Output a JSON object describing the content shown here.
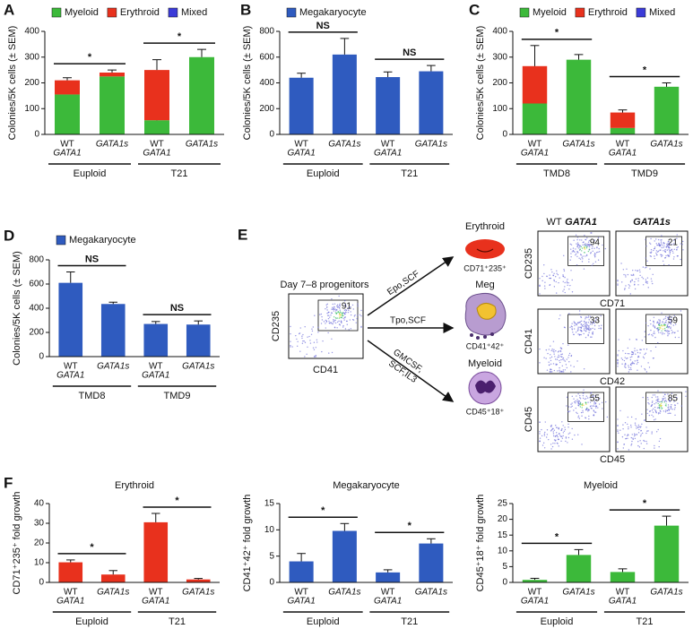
{
  "chart_data": [
    {
      "panel": "A",
      "type": "stacked_bar",
      "ylabel": "Colonies/5K cells (± SEM)",
      "categories": [
        [
          "WT",
          "GATA1"
        ],
        [
          "GATA1s"
        ],
        [
          "WT",
          "GATA1"
        ],
        [
          "GATA1s"
        ]
      ],
      "groups": [
        "Euploid",
        "T21"
      ],
      "significance": [
        "*",
        "*"
      ],
      "series": [
        {
          "name": "Myeloid",
          "color": "#3cb93a",
          "values": [
            155,
            225,
            55,
            300
          ],
          "errors": [
            null,
            null,
            10,
            30
          ]
        },
        {
          "name": "Erythroid",
          "color": "#e8311d",
          "values": [
            55,
            15,
            195,
            0
          ],
          "errors": [
            10,
            10,
            40,
            null
          ]
        },
        {
          "name": "Mixed",
          "color": "#3b3bd8",
          "values": [
            0,
            0,
            0,
            0
          ],
          "errors": [
            null,
            null,
            null,
            null
          ]
        }
      ],
      "ylim": [
        0,
        400
      ],
      "yticks": [
        0,
        100,
        200,
        300,
        400
      ]
    },
    {
      "panel": "B",
      "type": "bar",
      "ylabel": "Colonies/5K cells (± SEM)",
      "categories": [
        [
          "WT",
          "GATA1"
        ],
        [
          "GATA1s"
        ],
        [
          "WT",
          "GATA1"
        ],
        [
          "GATA1s"
        ]
      ],
      "groups": [
        "Euploid",
        "T21"
      ],
      "significance": [
        "NS",
        "NS"
      ],
      "series": [
        {
          "name": "Megakaryocyte",
          "color": "#2f5bbf",
          "values": [
            440,
            620,
            445,
            490
          ],
          "errors": [
            35,
            125,
            40,
            45
          ]
        }
      ],
      "ylim": [
        0,
        800
      ],
      "yticks": [
        0,
        200,
        400,
        600,
        800
      ]
    },
    {
      "panel": "C",
      "type": "stacked_bar",
      "ylabel": "Colonies/5K cells (± SEM)",
      "categories": [
        [
          "WT",
          "GATA1"
        ],
        [
          "GATA1s"
        ],
        [
          "WT",
          "GATA1"
        ],
        [
          "GATA1s"
        ]
      ],
      "groups": [
        "TMD8",
        "TMD9"
      ],
      "significance": [
        "*",
        "*"
      ],
      "series": [
        {
          "name": "Myeloid",
          "color": "#3cb93a",
          "values": [
            120,
            290,
            25,
            185
          ],
          "errors": [
            25,
            20,
            null,
            15
          ]
        },
        {
          "name": "Erythroid",
          "color": "#e8311d",
          "values": [
            145,
            0,
            60,
            0
          ],
          "errors": [
            80,
            null,
            10,
            null
          ]
        },
        {
          "name": "Mixed",
          "color": "#3b3bd8",
          "values": [
            0,
            0,
            0,
            0
          ],
          "errors": [
            null,
            null,
            null,
            null
          ]
        }
      ],
      "ylim": [
        0,
        400
      ],
      "yticks": [
        0,
        100,
        200,
        300,
        400
      ]
    },
    {
      "panel": "D",
      "type": "bar",
      "ylabel": "Colonies/5K cells (± SEM)",
      "categories": [
        [
          "WT",
          "GATA1"
        ],
        [
          "GATA1s"
        ],
        [
          "WT",
          "GATA1"
        ],
        [
          "GATA1s"
        ]
      ],
      "groups": [
        "TMD8",
        "TMD9"
      ],
      "significance": [
        "NS",
        "NS"
      ],
      "series": [
        {
          "name": "Megakaryocyte",
          "color": "#2f5bbf",
          "values": [
            610,
            435,
            270,
            265
          ],
          "errors": [
            90,
            15,
            20,
            30
          ]
        }
      ],
      "ylim": [
        0,
        800
      ],
      "yticks": [
        0,
        200,
        400,
        600,
        800
      ]
    },
    {
      "panel": "F",
      "type": "bar",
      "title": "Erythroid",
      "ylabel": "CD71⁺235⁺ fold growth",
      "categories": [
        [
          "WT",
          "GATA1"
        ],
        [
          "GATA1s"
        ],
        [
          "WT",
          "GATA1"
        ],
        [
          "GATA1s"
        ]
      ],
      "groups": [
        "Euploid",
        "T21"
      ],
      "significance": [
        "*",
        "*"
      ],
      "series": [
        {
          "color": "#e8311d",
          "values": [
            10.2,
            4,
            30.5,
            1.5
          ],
          "errors": [
            1.2,
            2,
            4.5,
            0.5
          ]
        }
      ],
      "ylim": [
        0,
        40
      ],
      "yticks": [
        0,
        10,
        20,
        30,
        40
      ]
    },
    {
      "type": "bar",
      "title": "Megakaryocyte",
      "ylabel": "CD41⁺42⁺ fold growth",
      "categories": [
        [
          "WT",
          "GATA1"
        ],
        [
          "GATA1s"
        ],
        [
          "WT",
          "GATA1"
        ],
        [
          "GATA1s"
        ]
      ],
      "groups": [
        "Euploid",
        "T21"
      ],
      "significance": [
        "*",
        "*"
      ],
      "series": [
        {
          "color": "#2f5bbf",
          "values": [
            4,
            9.8,
            1.9,
            7.4
          ],
          "errors": [
            1.5,
            1.4,
            0.5,
            0.9
          ]
        }
      ],
      "ylim": [
        0,
        15
      ],
      "yticks": [
        0,
        5,
        10,
        15
      ]
    },
    {
      "type": "bar",
      "title": "Myeloid",
      "ylabel": "CD45⁺18⁺ fold growth",
      "categories": [
        [
          "WT",
          "GATA1"
        ],
        [
          "GATA1s"
        ],
        [
          "WT",
          "GATA1"
        ],
        [
          "GATA1s"
        ]
      ],
      "groups": [
        "Euploid",
        "T21"
      ],
      "significance": [
        "*",
        "*"
      ],
      "series": [
        {
          "color": "#3cb93a",
          "values": [
            0.8,
            8.7,
            3.3,
            18
          ],
          "errors": [
            0.5,
            1.7,
            1,
            3
          ]
        }
      ],
      "ylim": [
        0,
        25
      ],
      "yticks": [
        0,
        5,
        10,
        15,
        20,
        25
      ]
    }
  ],
  "diagram": {
    "panel": "E",
    "source": {
      "label": "Day 7–8 progenitors",
      "y_axis": "CD235",
      "x_axis": "CD41",
      "gate": "91"
    },
    "column_headers": [
      "WT",
      "GATA1",
      "GATA1s"
    ],
    "branches": [
      {
        "conditions": [
          "Epo,SCF"
        ],
        "lineage": "Erythroid",
        "marker": "CD71⁺235⁺",
        "y_axis": "CD235",
        "x_axis": "CD71",
        "gates": [
          "94",
          "21"
        ]
      },
      {
        "conditions": [
          "Tpo,SCF"
        ],
        "lineage": "Meg",
        "marker": "CD41⁺42⁺",
        "y_axis": "CD41",
        "x_axis": "CD42",
        "gates": [
          "33",
          "59"
        ]
      },
      {
        "conditions": [
          "GMCSF,",
          "SCF,IL3"
        ],
        "lineage": "Myeloid",
        "marker": "CD45⁺18⁺",
        "y_axis": "CD45",
        "x_axis": "CD45",
        "gates": [
          "55",
          "85"
        ]
      }
    ]
  }
}
